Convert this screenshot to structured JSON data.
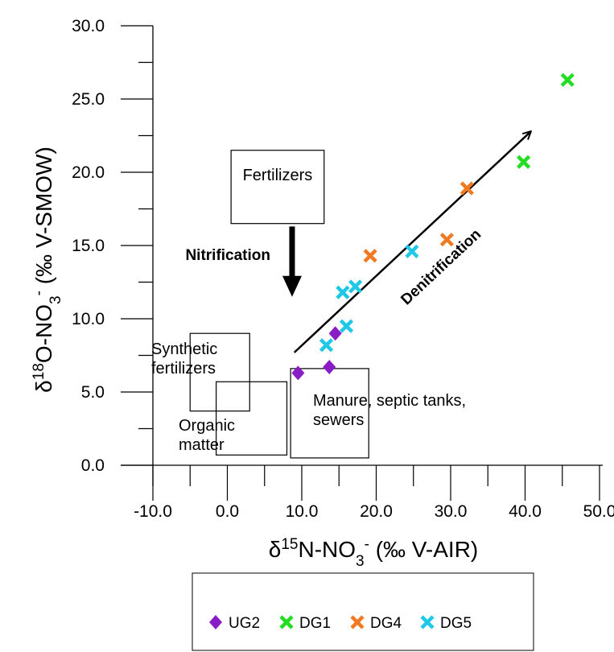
{
  "chart_data": {
    "type": "scatter",
    "xlabel": {
      "prefix": "δ",
      "sup": "15",
      "mid": "N-NO",
      "sub": "3",
      "sup2": "-",
      "tail": " (‰ V-AIR)"
    },
    "ylabel": {
      "prefix": "δ",
      "sup": "18",
      "mid": "O-NO",
      "sub": "3",
      "sup2": "-",
      "tail": " (‰ V-SMOW)"
    },
    "xlim": [
      -10,
      50
    ],
    "ylim": [
      0,
      30
    ],
    "x_ticks": [
      "-10.0",
      "0.0",
      "10.0",
      "20.0",
      "30.0",
      "40.0",
      "50.0"
    ],
    "y_ticks": [
      "0.0",
      "5.0",
      "10.0",
      "15.0",
      "20.0",
      "25.0",
      "30.0"
    ],
    "x_tick_values": [
      -10,
      0,
      10,
      20,
      30,
      40,
      50
    ],
    "y_tick_values": [
      0,
      5,
      10,
      15,
      20,
      25,
      30
    ],
    "series": [
      {
        "name": "UG2",
        "marker": "diamond",
        "color": "#8A1CC6",
        "points": [
          [
            9.5,
            6.3
          ],
          [
            13.7,
            6.7
          ],
          [
            14.5,
            9.0
          ]
        ]
      },
      {
        "name": "DG1",
        "marker": "x",
        "color": "#22DD22",
        "points": [
          [
            45.7,
            26.3
          ],
          [
            39.8,
            20.7
          ]
        ]
      },
      {
        "name": "DG4",
        "marker": "x",
        "color": "#F07A22",
        "points": [
          [
            19.2,
            14.3
          ],
          [
            29.5,
            15.4
          ],
          [
            32.2,
            18.9
          ]
        ]
      },
      {
        "name": "DG5",
        "marker": "x",
        "color": "#1FC8E6",
        "points": [
          [
            24.8,
            14.6
          ],
          [
            17.2,
            12.2
          ],
          [
            15.5,
            11.8
          ],
          [
            16.0,
            9.5
          ],
          [
            13.3,
            8.2
          ]
        ]
      }
    ],
    "annotations": {
      "boxes": [
        {
          "label": "Fertilizers",
          "x": [
            0.5,
            13.0
          ],
          "y": [
            16.5,
            21.5
          ]
        },
        {
          "label": "Synthetic\nfertilizers",
          "x": [
            -5.0,
            3.0
          ],
          "y": [
            3.7,
            9.0
          ]
        },
        {
          "label": "Organic\nmatter",
          "x": [
            -1.5,
            8.0
          ],
          "y": [
            0.7,
            5.7
          ]
        },
        {
          "label": "Manure, septic tanks,\nsewers",
          "x": [
            8.5,
            19.0
          ],
          "y": [
            0.5,
            6.6
          ]
        }
      ],
      "nitrification": {
        "label": "Nitrification",
        "from": [
          8.7,
          16.3
        ],
        "to": [
          8.7,
          11.5
        ]
      },
      "denitrification": {
        "label": "Denitrification",
        "from": [
          9.0,
          7.7
        ],
        "to": [
          40.8,
          22.8
        ]
      }
    },
    "legend": {
      "position": "bottom",
      "entries": [
        "UG2",
        "DG1",
        "DG4",
        "DG5"
      ]
    },
    "grid": false
  }
}
